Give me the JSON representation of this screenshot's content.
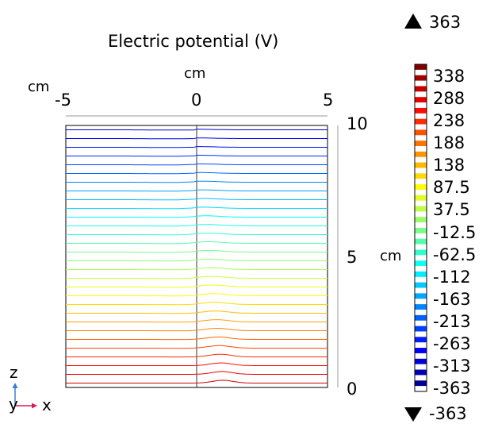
{
  "chart_data": {
    "type": "contour",
    "title": "Electric potential (V)",
    "x_unit_label": "cm",
    "z_unit_label": "cm",
    "colorbar_unit_label": "cm",
    "x_ticks": [
      "-5",
      "0",
      "5"
    ],
    "z_ticks": [
      "10",
      "5",
      "0"
    ],
    "xlim": [
      -5,
      5
    ],
    "zlim": [
      0,
      10
    ],
    "bump_center_x": 1,
    "contour_levels": 30,
    "colorbar_levels": [
      "338",
      "288",
      "238",
      "188",
      "138",
      "87.5",
      "37.5",
      "-12.5",
      "-62.5",
      "-112",
      "-163",
      "-213",
      "-263",
      "-313",
      "-363"
    ],
    "max_label": "363",
    "min_label": "-363",
    "axis_triad": {
      "z": "z",
      "y": "y",
      "x": "x"
    },
    "colors": {
      "high": "#800000",
      "low": "#000080",
      "triad_z": "#3d7bd9",
      "triad_x": "#d91d54"
    }
  }
}
